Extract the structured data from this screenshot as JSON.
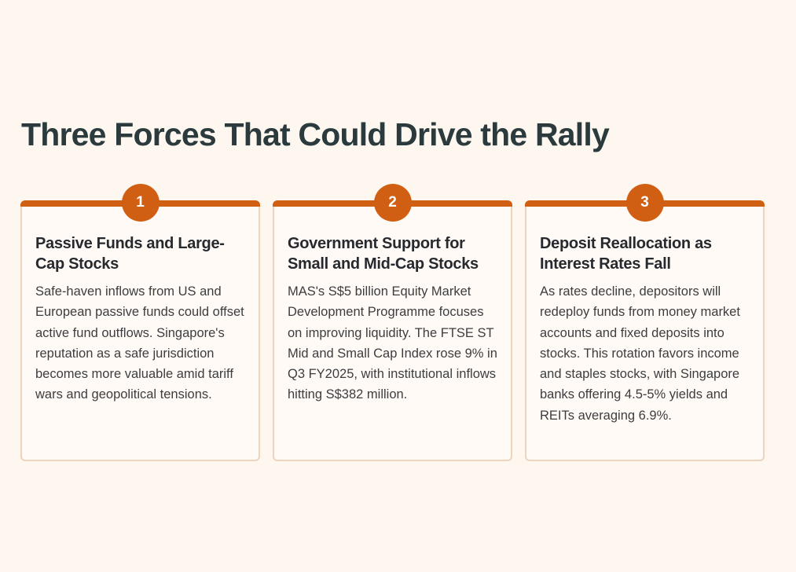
{
  "page": {
    "title": "Three Forces That Could Drive the Rally"
  },
  "colors": {
    "background": "#fdf7f0",
    "accent": "#d05f13",
    "title_text": "#2a3a3d",
    "card_border": "#ecd5bc",
    "card_background": "#fffaf5"
  },
  "cards": [
    {
      "number": "1",
      "heading": "Passive Funds and Large-Cap Stocks",
      "body": "Safe-haven inflows from US and European passive funds could offset active fund outflows. Singapore's reputation as a safe jurisdiction becomes more valuable amid tariff wars and geopolitical tensions."
    },
    {
      "number": "2",
      "heading": "Government Support for Small and Mid-Cap Stocks",
      "body": "MAS's S$5 billion Equity Market Development Programme focuses on improving liquidity. The FTSE ST Mid and Small Cap Index rose 9% in Q3 FY2025, with institutional inflows hitting S$382 million."
    },
    {
      "number": "3",
      "heading": "Deposit Reallocation as Interest Rates Fall",
      "body": "As rates decline, depositors will redeploy funds from money market accounts and fixed deposits into stocks. This rotation favors income and staples stocks, with Singapore banks offering 4.5-5% yields and REITs averaging 6.9%."
    }
  ]
}
